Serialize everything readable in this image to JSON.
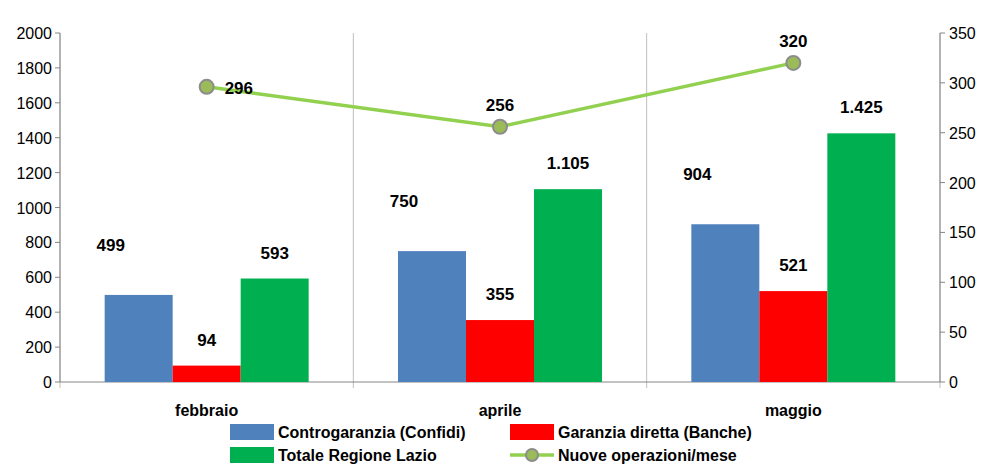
{
  "chart_data": {
    "type": "bar",
    "categories": [
      "febbraio",
      "aprile",
      "maggio"
    ],
    "series": [
      {
        "name": "Controgaranzia (Confidi)",
        "color": "#4f81bd",
        "values": [
          499,
          750,
          904
        ]
      },
      {
        "name": "Garanzia diretta (Banche)",
        "color": "#ff0000",
        "values": [
          94,
          355,
          521
        ]
      },
      {
        "name": "Totale Regione Lazio",
        "color": "#00b050",
        "values": [
          593,
          1105,
          1425
        ],
        "value_labels": [
          "593",
          "1.105",
          "1.425"
        ]
      },
      {
        "name": "Nuove operazioni/mese",
        "type": "line",
        "axis": "y2",
        "color": "#92d050",
        "marker": "circle",
        "values": [
          296,
          256,
          320
        ]
      }
    ],
    "ylim": [
      0,
      2000
    ],
    "yticks": [
      0,
      200,
      400,
      600,
      800,
      1000,
      1200,
      1400,
      1600,
      1800,
      2000
    ],
    "y2lim": [
      0,
      350
    ],
    "y2ticks": [
      0,
      50,
      100,
      150,
      200,
      250,
      300,
      350
    ],
    "grid": false,
    "legend": "bottom",
    "data_labels": true
  }
}
